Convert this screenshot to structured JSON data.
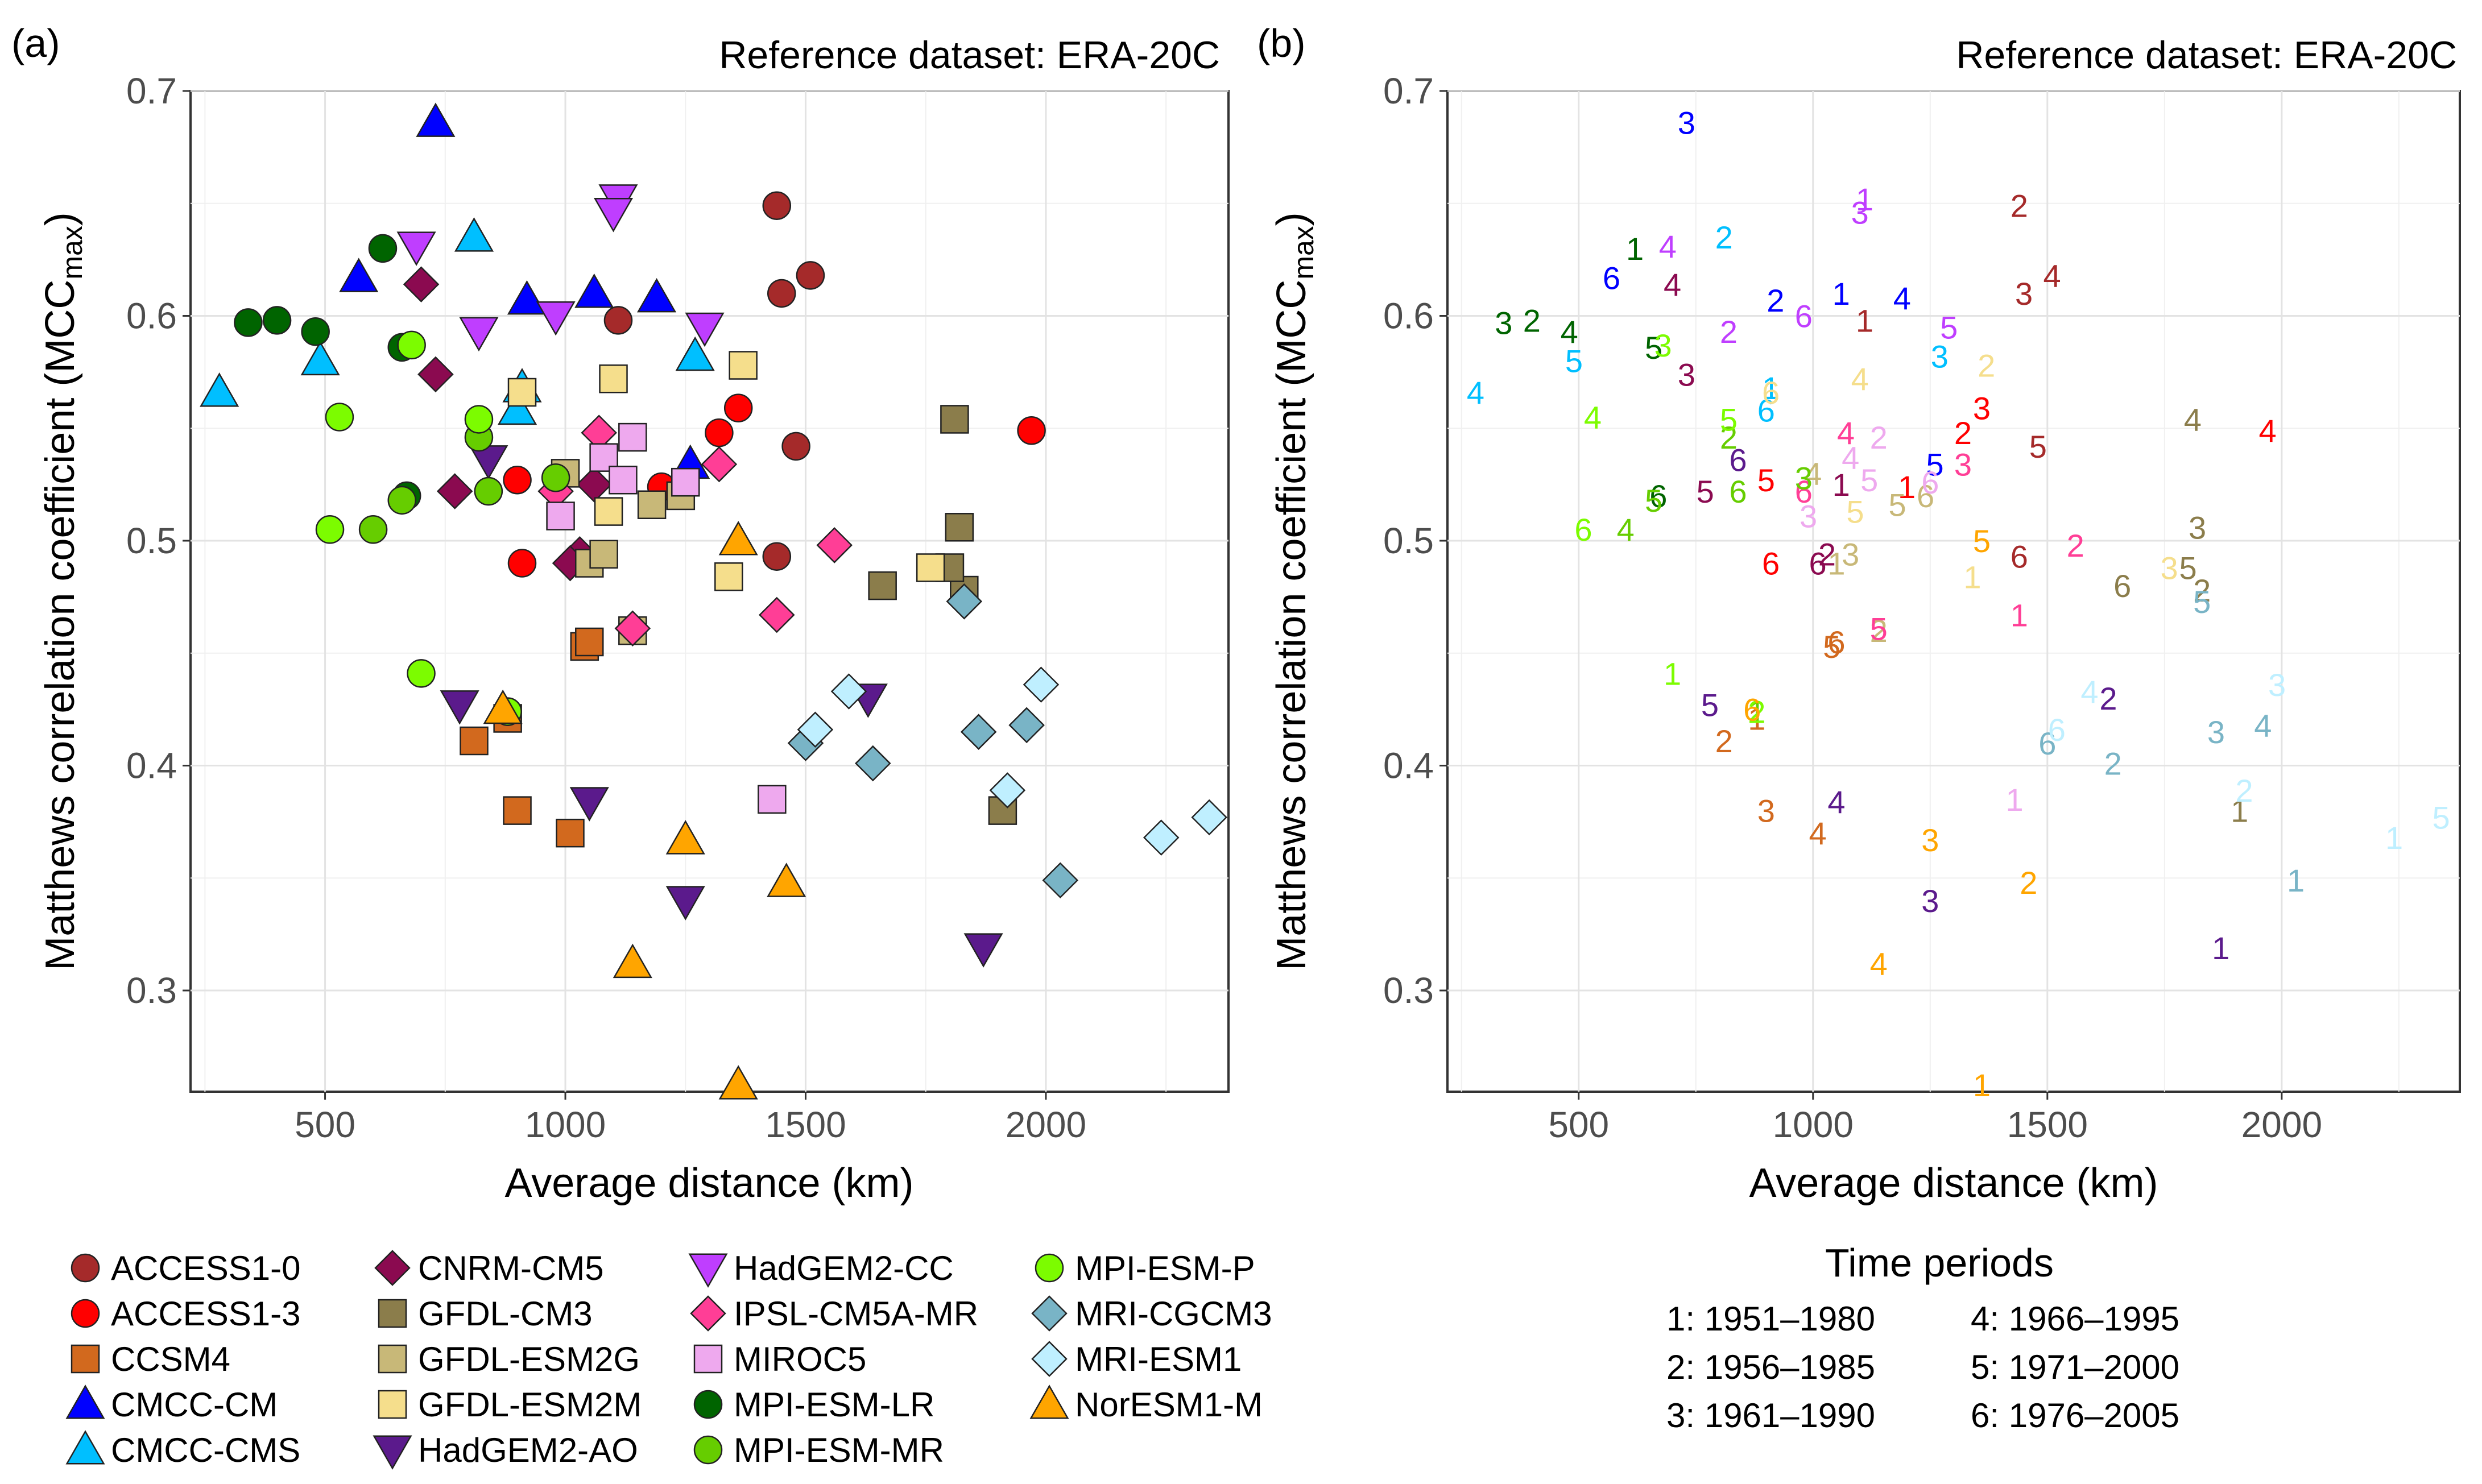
{
  "panels": {
    "a": {
      "label": "(a)",
      "reference": "Reference dataset: ERA-20C"
    },
    "b": {
      "label": "(b)",
      "reference": "Reference dataset: ERA-20C"
    }
  },
  "axes": {
    "xlabel": "Average distance (km)",
    "ylabel_main": "Matthews correlation coefficient  (MCC",
    "ylabel_sub": "max",
    "ylabel_close": ")",
    "xlim": [
      220,
      2380
    ],
    "ylim": [
      0.255,
      0.7
    ],
    "xticks": [
      500,
      1000,
      1500,
      2000
    ],
    "yticks": [
      0.3,
      0.4,
      0.5,
      0.6,
      0.7
    ],
    "grid": true
  },
  "time_periods": {
    "title": "Time periods",
    "items": [
      {
        "code": "1",
        "label": "1: 1951–1980"
      },
      {
        "code": "2",
        "label": "2: 1956–1985"
      },
      {
        "code": "3",
        "label": "3: 1961–1990"
      },
      {
        "code": "4",
        "label": "4: 1966–1995"
      },
      {
        "code": "5",
        "label": "5: 1971–2000"
      },
      {
        "code": "6",
        "label": "6: 1976–2005"
      }
    ]
  },
  "chart_data": [
    {
      "panel": "a",
      "type": "scatter",
      "title": "Reference dataset: ERA-20C",
      "xlabel": "Average distance (km)",
      "ylabel": "Matthews correlation coefficient (MCCmax)",
      "xlim": [
        220,
        2380
      ],
      "ylim": [
        0.255,
        0.7
      ],
      "legend": "bottom",
      "series": [
        {
          "name": "ACCESS1-0",
          "color": "#A52A2A",
          "shape": "circle",
          "points": [
            [
              1110,
              0.598
            ],
            [
              1440,
              0.649
            ],
            [
              1450,
              0.61
            ],
            [
              1510,
              0.618
            ],
            [
              1480,
              0.542
            ],
            [
              1440,
              0.493
            ]
          ]
        },
        {
          "name": "ACCESS1-3",
          "color": "#FF0000",
          "shape": "circle",
          "points": [
            [
              1200,
              0.524
            ],
            [
              1320,
              0.548
            ],
            [
              1360,
              0.559
            ],
            [
              1970,
              0.549
            ],
            [
              900,
              0.527
            ],
            [
              910,
              0.49
            ]
          ]
        },
        {
          "name": "CCSM4",
          "color": "#D2691E",
          "shape": "square",
          "points": [
            [
              880,
              0.421
            ],
            [
              810,
              0.411
            ],
            [
              900,
              0.38
            ],
            [
              1010,
              0.37
            ],
            [
              1040,
              0.453
            ],
            [
              1050,
              0.455
            ]
          ]
        },
        {
          "name": "CMCC-CM",
          "color": "#0000FF",
          "shape": "triangle-up",
          "points": [
            [
              1060,
              0.61
            ],
            [
              920,
              0.607
            ],
            [
              730,
              0.686
            ],
            [
              1190,
              0.608
            ],
            [
              1260,
              0.534
            ],
            [
              570,
              0.617
            ]
          ]
        },
        {
          "name": "CMCC-CMS",
          "color": "#00BFFF",
          "shape": "triangle-up",
          "points": [
            [
              910,
              0.568
            ],
            [
              810,
              0.635
            ],
            [
              1270,
              0.582
            ],
            [
              280,
              0.566
            ],
            [
              490,
              0.58
            ],
            [
              900,
              0.558
            ]
          ]
        },
        {
          "name": "CNRM-CM5",
          "color": "#8B0A50",
          "shape": "diamond",
          "points": [
            [
              1060,
              0.525
            ],
            [
              1030,
              0.494
            ],
            [
              730,
              0.574
            ],
            [
              700,
              0.614
            ],
            [
              770,
              0.522
            ],
            [
              1010,
              0.49
            ]
          ]
        },
        {
          "name": "GFDL-CM3",
          "color": "#8B7D4B",
          "shape": "square",
          "points": [
            [
              1910,
              0.38
            ],
            [
              1830,
              0.478
            ],
            [
              1820,
              0.506
            ],
            [
              1810,
              0.554
            ],
            [
              1800,
              0.488
            ],
            [
              1660,
              0.48
            ]
          ]
        },
        {
          "name": "GFDL-ESM2G",
          "color": "#C8B878",
          "shape": "square",
          "points": [
            [
              1050,
              0.49
            ],
            [
              1140,
              0.46
            ],
            [
              1080,
              0.494
            ],
            [
              1000,
              0.53
            ],
            [
              1180,
              0.516
            ],
            [
              1240,
              0.52
            ]
          ]
        },
        {
          "name": "GFDL-ESM2M",
          "color": "#F5DE8C",
          "shape": "square",
          "points": [
            [
              1340,
              0.484
            ],
            [
              1370,
              0.578
            ],
            [
              1760,
              0.488
            ],
            [
              1100,
              0.572
            ],
            [
              1090,
              0.513
            ],
            [
              910,
              0.566
            ]
          ]
        },
        {
          "name": "HadGEM2-AO",
          "color": "#5B1A8C",
          "shape": "triangle-down",
          "points": [
            [
              1870,
              0.319
            ],
            [
              1630,
              0.43
            ],
            [
              1250,
              0.34
            ],
            [
              1050,
              0.384
            ],
            [
              780,
              0.427
            ],
            [
              840,
              0.536
            ]
          ]
        },
        {
          "name": "HadGEM2-CC",
          "color": "#BF3EFF",
          "shape": "triangle-down",
          "points": [
            [
              1110,
              0.652
            ],
            [
              820,
              0.593
            ],
            [
              1100,
              0.646
            ],
            [
              690,
              0.631
            ],
            [
              1290,
              0.595
            ],
            [
              980,
              0.6
            ]
          ]
        },
        {
          "name": "IPSL-CM5A-MR",
          "color": "#FF3E96",
          "shape": "diamond",
          "points": [
            [
              1440,
              0.467
            ],
            [
              1560,
              0.498
            ],
            [
              1320,
              0.534
            ],
            [
              1070,
              0.548
            ],
            [
              1140,
              0.461
            ],
            [
              980,
              0.522
            ]
          ]
        },
        {
          "name": "MIROC5",
          "color": "#EEA9EE",
          "shape": "square",
          "points": [
            [
              1430,
              0.385
            ],
            [
              1140,
              0.546
            ],
            [
              990,
              0.511
            ],
            [
              1080,
              0.537
            ],
            [
              1120,
              0.527
            ],
            [
              1250,
              0.526
            ]
          ]
        },
        {
          "name": "MPI-ESM-LR",
          "color": "#006400",
          "shape": "circle",
          "points": [
            [
              620,
              0.63
            ],
            [
              400,
              0.598
            ],
            [
              340,
              0.597
            ],
            [
              480,
              0.593
            ],
            [
              660,
              0.586
            ],
            [
              670,
              0.52
            ]
          ]
        },
        {
          "name": "MPI-ESM-MR",
          "color": "#66CD00",
          "shape": "circle",
          "points": [
            [
              880,
              0.424
            ],
            [
              820,
              0.546
            ],
            [
              980,
              0.528
            ],
            [
              600,
              0.505
            ],
            [
              660,
              0.518
            ],
            [
              840,
              0.522
            ]
          ]
        },
        {
          "name": "MPI-ESM-P",
          "color": "#7CFC00",
          "shape": "circle",
          "points": [
            [
              700,
              0.441
            ],
            [
              880,
              0.424
            ],
            [
              680,
              0.587
            ],
            [
              530,
              0.555
            ],
            [
              820,
              0.554
            ],
            [
              510,
              0.505
            ]
          ]
        },
        {
          "name": "MRI-CGCM3",
          "color": "#79B4C6",
          "shape": "diamond",
          "points": [
            [
              2030,
              0.349
            ],
            [
              1640,
              0.401
            ],
            [
              1860,
              0.415
            ],
            [
              1960,
              0.418
            ],
            [
              1830,
              0.473
            ],
            [
              1500,
              0.41
            ]
          ]
        },
        {
          "name": "MRI-ESM1",
          "color": "#BFEFFF",
          "shape": "diamond",
          "points": [
            [
              2240,
              0.368
            ],
            [
              1920,
              0.389
            ],
            [
              1990,
              0.436
            ],
            [
              1590,
              0.433
            ],
            [
              2340,
              0.377
            ],
            [
              1520,
              0.416
            ]
          ]
        },
        {
          "name": "NorESM1-M",
          "color": "#FFA500",
          "shape": "triangle-up",
          "points": [
            [
              1360,
              0.258
            ],
            [
              1460,
              0.348
            ],
            [
              1250,
              0.367
            ],
            [
              1140,
              0.312
            ],
            [
              1360,
              0.5
            ],
            [
              870,
              0.425
            ]
          ]
        }
      ]
    },
    {
      "panel": "b",
      "type": "scatter",
      "title": "Reference dataset: ERA-20C",
      "xlabel": "Average distance (km)",
      "ylabel": "Matthews correlation coefficient (MCCmax)",
      "xlim": [
        220,
        2380
      ],
      "ylim": [
        0.255,
        0.7
      ],
      "note": "Same points as panel (a), each drawn as its time-period number (1–6) in the model colour"
    }
  ],
  "legend_columns": [
    [
      "ACCESS1-0",
      "ACCESS1-3",
      "CCSM4",
      "CMCC-CM",
      "CMCC-CMS"
    ],
    [
      "CNRM-CM5",
      "GFDL-CM3",
      "GFDL-ESM2G",
      "GFDL-ESM2M",
      "HadGEM2-AO"
    ],
    [
      "HadGEM2-CC",
      "IPSL-CM5A-MR",
      "MIROC5",
      "MPI-ESM-LR",
      "MPI-ESM-MR"
    ],
    [
      "MPI-ESM-P",
      "MRI-CGCM3",
      "MRI-ESM1",
      "NorESM1-M"
    ]
  ]
}
